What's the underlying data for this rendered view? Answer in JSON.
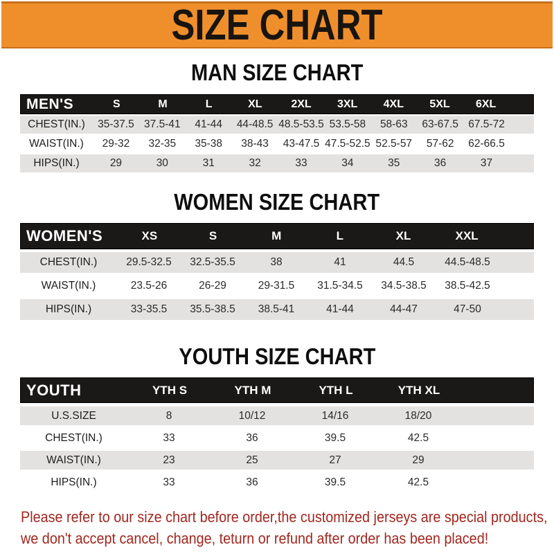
{
  "banner": {
    "title": "SIZE CHART"
  },
  "sections": [
    {
      "title": "MAN SIZE CHART",
      "header_label": "MEN'S",
      "columns": [
        "S",
        "M",
        "L",
        "XL",
        "2XL",
        "3XL",
        "4XL",
        "5XL",
        "6XL"
      ],
      "rows": [
        {
          "label": "CHEST(IN.)",
          "values": [
            "35-37.5",
            "37.5-41",
            "41-44",
            "44-48.5",
            "48.5-53.5",
            "53.5-58",
            "58-63",
            "63-67.5",
            "67.5-72"
          ]
        },
        {
          "label": "WAIST(IN.)",
          "values": [
            "29-32",
            "32-35",
            "35-38",
            "38-43",
            "43-47.5",
            "47.5-52.5",
            "52.5-57",
            "57-62",
            "62-66.5"
          ]
        },
        {
          "label": "HIPS(IN.)",
          "values": [
            "29",
            "30",
            "31",
            "32",
            "33",
            "34",
            "35",
            "36",
            "37"
          ]
        }
      ]
    },
    {
      "title": "WOMEN SIZE CHART",
      "header_label": "WOMEN'S",
      "columns": [
        "XS",
        "S",
        "M",
        "L",
        "XL",
        "XXL"
      ],
      "rows": [
        {
          "label": "CHEST(IN.)",
          "values": [
            "29.5-32.5",
            "32.5-35.5",
            "38",
            "41",
            "44.5",
            "44.5-48.5"
          ]
        },
        {
          "label": "WAIST(IN.)",
          "values": [
            "23.5-26",
            "26-29",
            "29-31.5",
            "31.5-34.5",
            "34.5-38.5",
            "38.5-42.5"
          ]
        },
        {
          "label": "HIPS(IN.)",
          "values": [
            "33-35.5",
            "35.5-38.5",
            "38.5-41",
            "41-44",
            "44-47",
            "47-50"
          ]
        }
      ]
    },
    {
      "title": "YOUTH SIZE CHART",
      "header_label": "YOUTH",
      "columns": [
        "YTH S",
        "YTH M",
        "YTH L",
        "YTH XL"
      ],
      "rows": [
        {
          "label": "U.S.SIZE",
          "values": [
            "8",
            "10/12",
            "14/16",
            "18/20"
          ]
        },
        {
          "label": "CHEST(IN.)",
          "values": [
            "33",
            "36",
            "39.5",
            "42.5"
          ]
        },
        {
          "label": "WAIST(IN.)",
          "values": [
            "23",
            "25",
            "27",
            "29"
          ]
        },
        {
          "label": "HIPS(IN.)",
          "values": [
            "33",
            "36",
            "39.5",
            "42.5"
          ]
        }
      ]
    }
  ],
  "footer": {
    "line1": "Please refer to our size chart before order,the customized jerseys are special products,",
    "line2": "we don't accept cancel, change, teturn or refund after order has been placed!"
  },
  "colors": {
    "banner_bg": "#EF8F2C",
    "banner_edge": "#C8701A",
    "banner_text": "#181410",
    "bar_bg": "#1B1818",
    "row_gray": "#E4E2E0",
    "footer_red": "#A1271F"
  }
}
